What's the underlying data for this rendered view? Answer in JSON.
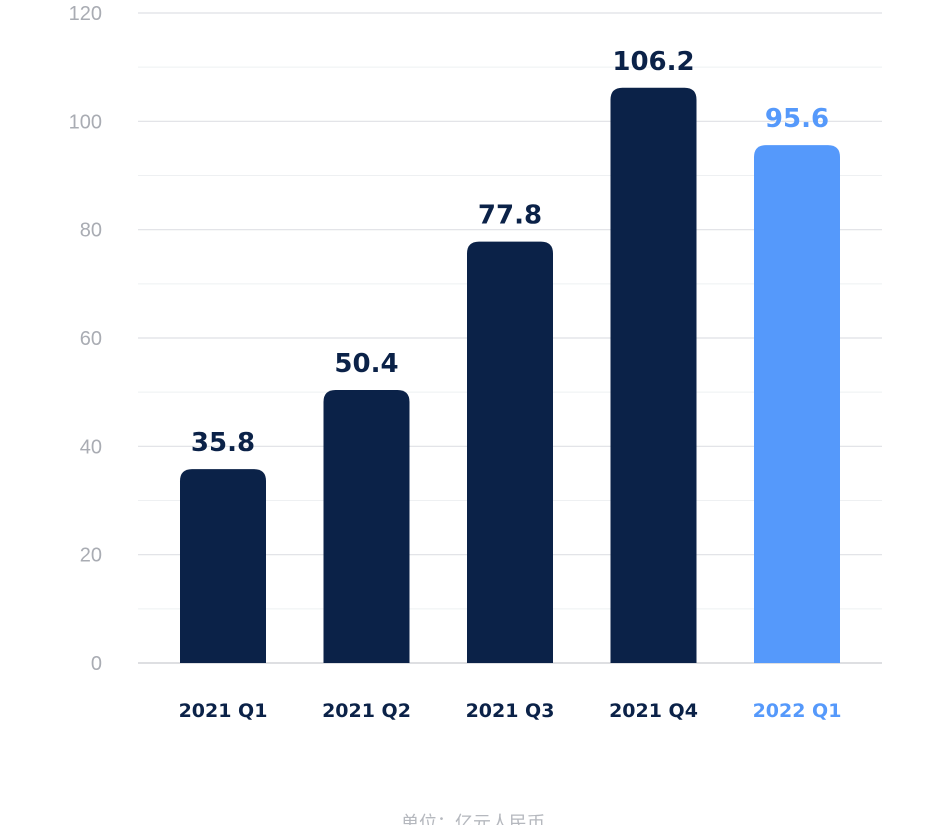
{
  "chart_data": {
    "type": "bar",
    "categories": [
      "2021 Q1",
      "2021 Q2",
      "2021 Q3",
      "2021 Q4",
      "2022 Q1"
    ],
    "values": [
      35.8,
      50.4,
      77.8,
      106.2,
      95.6
    ],
    "value_labels": [
      "35.8",
      "50.4",
      "77.8",
      "106.2",
      "95.6"
    ],
    "yticks": [
      "0",
      "20",
      "40",
      "60",
      "80",
      "100",
      "120"
    ],
    "ylim": [
      0,
      120
    ],
    "grid": true,
    "legend": "none",
    "title": "",
    "xlabel": "",
    "ylabel": "",
    "colors": {
      "default_bar": "#0b2248",
      "highlight_bar": "#5599fb",
      "default_text": "#0b2248",
      "highlight_text": "#5599fb",
      "grid_major": "#dfe1e5",
      "grid_minor": "#eef0f2",
      "tick_text": "#a9acb3"
    },
    "highlight_index": 4
  },
  "footer": {
    "unit_note": "单位：亿元人民币"
  }
}
